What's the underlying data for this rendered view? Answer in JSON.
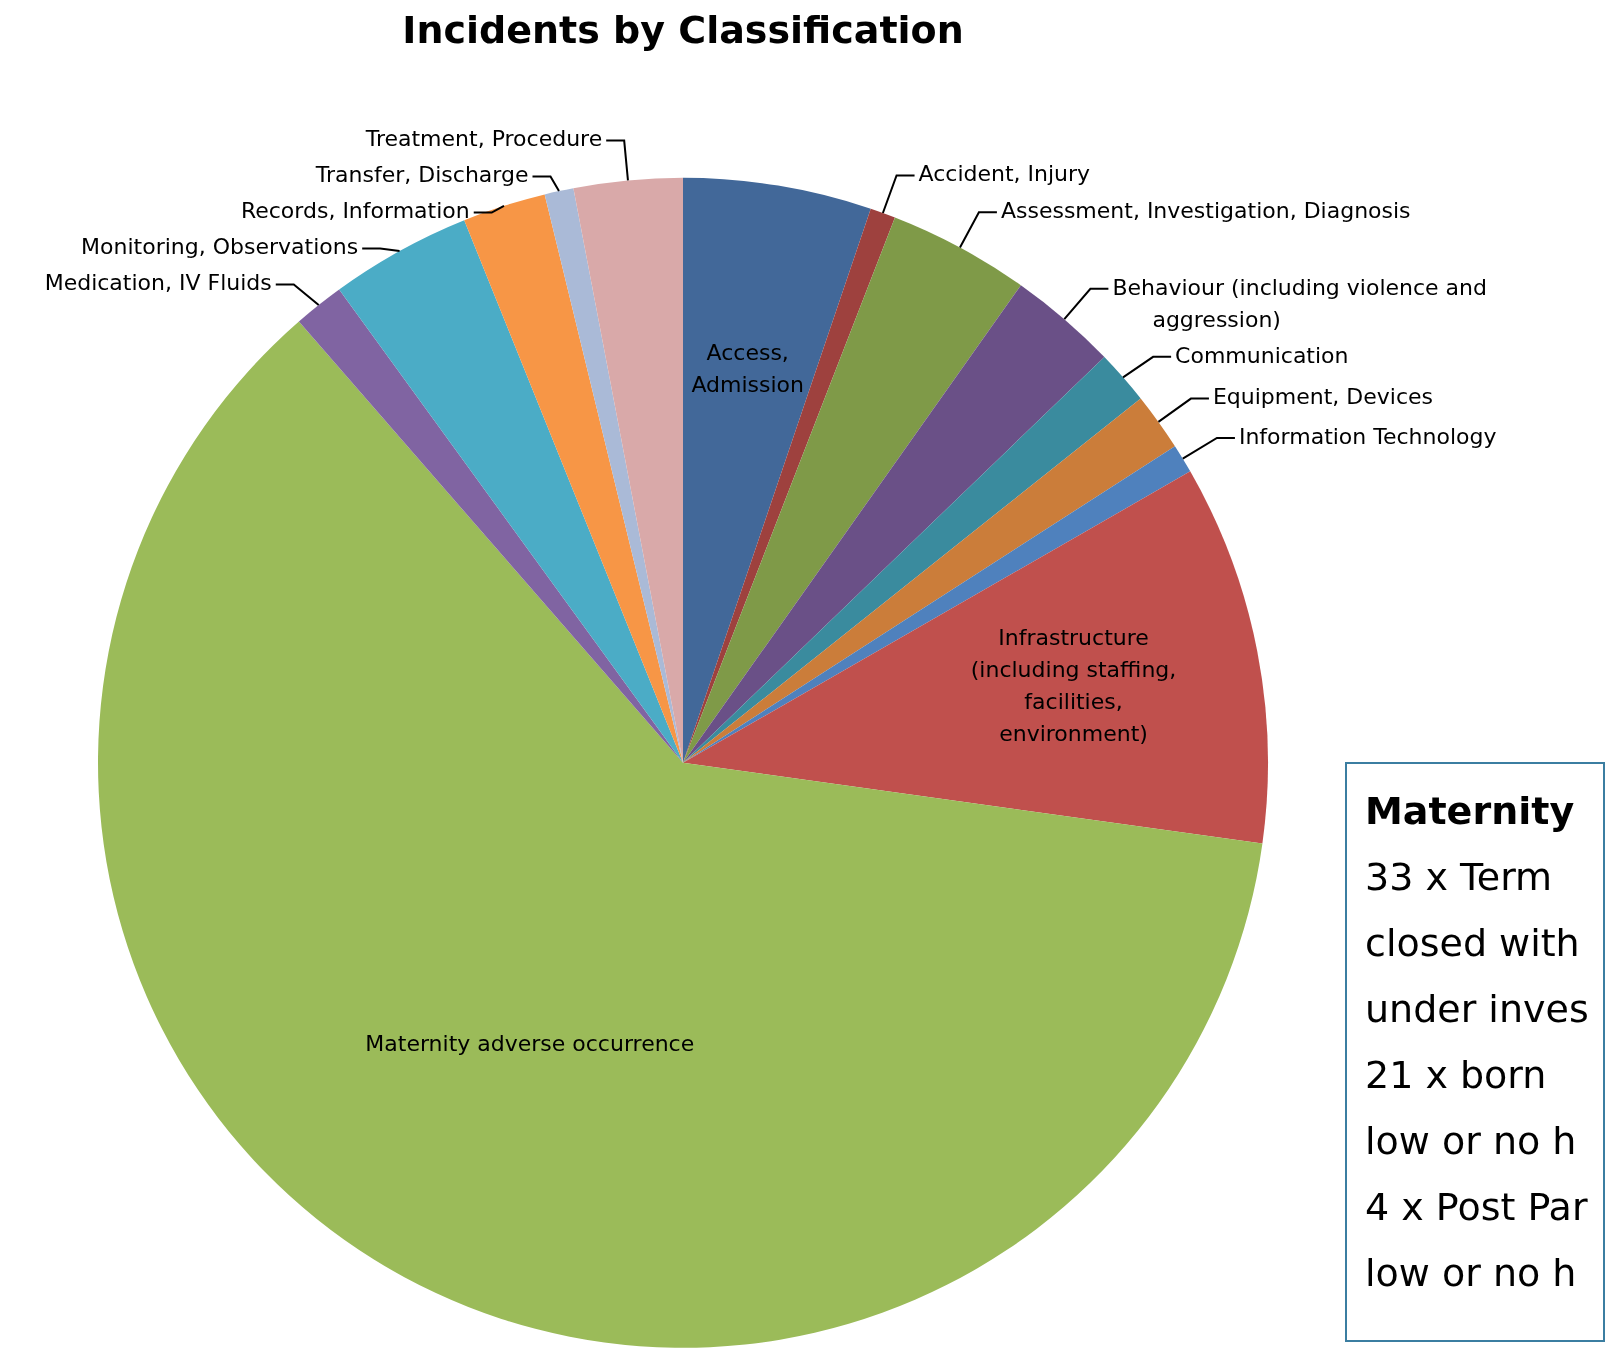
{
  "chart_data": {
    "type": "pie",
    "title": "Incidents by Classification",
    "categories": [
      "Access, Admission",
      "Accident, Injury",
      "Assessment, Investigation, Diagnosis",
      "Behaviour (including violence and aggression)",
      "Communication",
      "Equipment, Devices",
      "Information Technology",
      "Infrastructure (including staffing, facilities, environment)",
      "Maternity adverse occurrence",
      "Medication, IV Fluids",
      "Monitoring, Observations",
      "Records, Information",
      "Transfer, Discharge",
      "Treatment, Procedure"
    ],
    "values": [
      5.2,
      0.7,
      3.9,
      3.0,
      1.5,
      1.6,
      0.8,
      10.5,
      61.4,
      1.4,
      3.9,
      2.3,
      0.8,
      3.0
    ],
    "colors": [
      "#426899",
      "#9e413e",
      "#7f9a48",
      "#6a5087",
      "#3a8b9e",
      "#cb7d3a",
      "#4f81bd",
      "#c0504d",
      "#9bbb59",
      "#8064a2",
      "#4bacc6",
      "#f79646",
      "#aabad7",
      "#d9a9a9"
    ],
    "annotations": [
      "Maternity",
      "33 x Term",
      "closed with",
      "under inves",
      "21 x born",
      "low or no h",
      "4 x Post Par",
      "low or no h"
    ]
  }
}
